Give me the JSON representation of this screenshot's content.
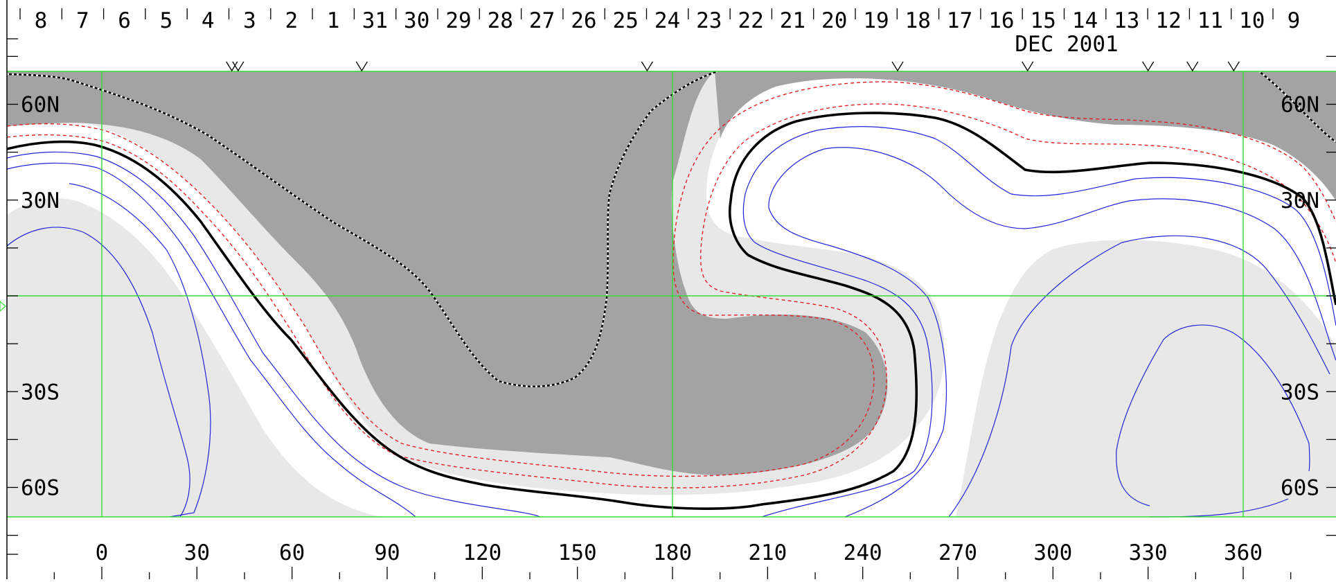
{
  "chart_data": {
    "type": "contour",
    "date_labels": [
      "8",
      "7",
      "6",
      "5",
      "4",
      "3",
      "2",
      "1",
      "31",
      "30",
      "29",
      "28",
      "27",
      "26",
      "25",
      "24",
      "23",
      "22",
      "21",
      "20",
      "19",
      "18",
      "17",
      "16",
      "15",
      "14",
      "13",
      "12",
      "11",
      "10",
      "9"
    ],
    "month_label": "DEC 2001",
    "lat_labels": [
      {
        "text": "60N",
        "lat": 60
      },
      {
        "text": "30N",
        "lat": 30
      },
      {
        "text": "30S",
        "lat": -30
      },
      {
        "text": "60S",
        "lat": -60
      }
    ],
    "lon_labels": [
      {
        "text": "0",
        "lon": 0
      },
      {
        "text": "30",
        "lon": 30
      },
      {
        "text": "60",
        "lon": 60
      },
      {
        "text": "90",
        "lon": 90
      },
      {
        "text": "120",
        "lon": 120
      },
      {
        "text": "150",
        "lon": 150
      },
      {
        "text": "180",
        "lon": 180
      },
      {
        "text": "210",
        "lon": 210
      },
      {
        "text": "240",
        "lon": 240
      },
      {
        "text": "270",
        "lon": 270
      },
      {
        "text": "300",
        "lon": 300
      },
      {
        "text": "330",
        "lon": 330
      },
      {
        "text": "360",
        "lon": 360
      }
    ],
    "x_range": [
      -30,
      390
    ],
    "y_range": [
      -70,
      70
    ],
    "reference_lines": {
      "lon": [
        0,
        180,
        360
      ],
      "lat": [
        0
      ]
    },
    "event_marker_lons": [
      41,
      43,
      82,
      172,
      251,
      292,
      330,
      344,
      357
    ],
    "colors": {
      "shade_dark": "#a3a3a3",
      "shade_light": "#e8e8e8",
      "grid_green": "#33dd33",
      "contour_blue": "#2222dd",
      "contour_red": "#e02020",
      "contour_black": "#000000"
    }
  }
}
